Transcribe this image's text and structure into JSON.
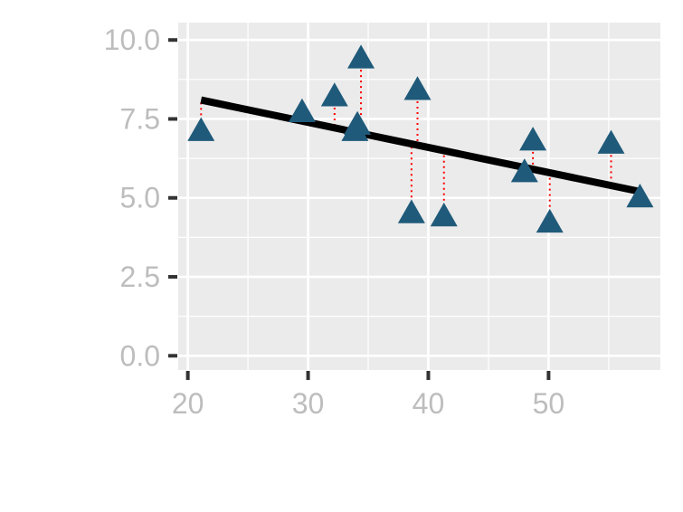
{
  "chart_data": {
    "type": "scatter",
    "title": "",
    "xlabel": "",
    "ylabel": "",
    "xlim": [
      19.2,
      59.3
    ],
    "ylim": [
      -0.45,
      10.55
    ],
    "x_ticks": [
      20,
      30,
      40,
      50
    ],
    "x_tick_labels": [
      "20",
      "30",
      "40",
      "50"
    ],
    "y_ticks": [
      0,
      2.5,
      5,
      7.5,
      10
    ],
    "y_tick_labels": [
      "0.0",
      "2.5",
      "5.0",
      "7.5",
      "10.0"
    ],
    "grid": true,
    "marker": "triangle",
    "colors": {
      "points": "#1f5a7a",
      "fit_line": "#000000",
      "residuals": "#ff0000",
      "panel": "#ebebeb",
      "grid": "#ffffff",
      "tick_text": "#bdbdbd",
      "tick_mark": "#333333"
    },
    "points": [
      {
        "x": 21.1,
        "y": 7.1
      },
      {
        "x": 29.5,
        "y": 7.7
      },
      {
        "x": 32.2,
        "y": 8.2
      },
      {
        "x": 33.9,
        "y": 7.1
      },
      {
        "x": 34.1,
        "y": 7.3
      },
      {
        "x": 34.4,
        "y": 9.4
      },
      {
        "x": 38.6,
        "y": 4.5
      },
      {
        "x": 39.1,
        "y": 8.4
      },
      {
        "x": 41.3,
        "y": 4.4
      },
      {
        "x": 48.0,
        "y": 5.8
      },
      {
        "x": 48.7,
        "y": 6.8
      },
      {
        "x": 50.1,
        "y": 4.2
      },
      {
        "x": 55.2,
        "y": 6.7
      },
      {
        "x": 57.6,
        "y": 5.0
      }
    ],
    "fit_line": {
      "x": [
        21.1,
        57.6
      ],
      "y": [
        8.1,
        5.2
      ]
    }
  }
}
